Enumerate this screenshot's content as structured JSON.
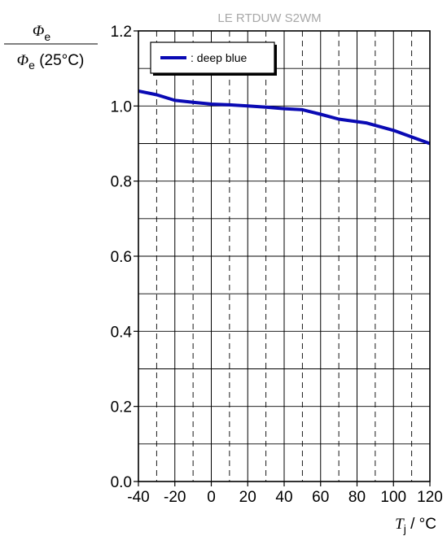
{
  "chart_data": {
    "type": "line",
    "title": "LE RTDUW S2WM",
    "ylabel": {
      "num_symbol": "Φ",
      "num_sub": "e",
      "den_symbol": "Φ",
      "den_sub": "e",
      "den_suffix": " (25°C)"
    },
    "xlabel": {
      "symbol": "T",
      "sub": "j",
      "unit": " / °C"
    },
    "xlim": [
      -40,
      120
    ],
    "ylim": [
      0.0,
      1.2
    ],
    "xticks": [
      -40,
      -20,
      0,
      20,
      40,
      60,
      80,
      100,
      120
    ],
    "xtick_labels": [
      "-40",
      "-20",
      "0",
      "20",
      "40",
      "60",
      "80",
      "100",
      "120"
    ],
    "yticks": [
      0.0,
      0.2,
      0.4,
      0.6,
      0.8,
      1.0,
      1.2
    ],
    "ytick_labels": [
      "0.0",
      "0.2",
      "0.4",
      "0.6",
      "0.8",
      "1.0",
      "1.2"
    ],
    "grid": true,
    "legend_position": "top-left",
    "series": [
      {
        "name": ": deep blue",
        "color": "#0a0ab4",
        "x": [
          -40,
          -30,
          -20,
          -10,
          0,
          10,
          20,
          30,
          40,
          50,
          60,
          70,
          85,
          100,
          120
        ],
        "y": [
          1.04,
          1.03,
          1.015,
          1.01,
          1.005,
          1.003,
          1.0,
          0.997,
          0.993,
          0.99,
          0.978,
          0.965,
          0.955,
          0.935,
          0.9
        ]
      }
    ]
  }
}
